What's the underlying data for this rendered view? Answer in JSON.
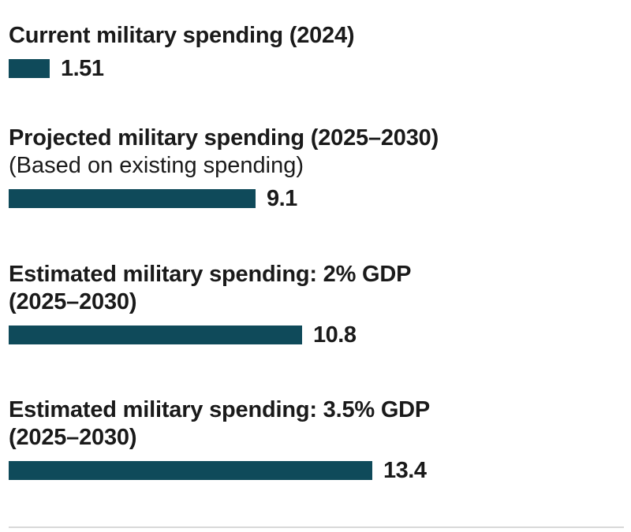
{
  "chart_data": {
    "type": "bar",
    "orientation": "horizontal",
    "title": "",
    "xlabel": "",
    "ylabel": "",
    "xlim": [
      0,
      13.4
    ],
    "bar_color": "#0f4a5a",
    "categories": [
      "Current military spending (2024)",
      "Projected military spending (2025–2030)",
      "Estimated military spending: 2% GDP (2025–2030)",
      "Estimated military spending: 3.5% GDP (2025–2030)"
    ],
    "items": [
      {
        "label_lines": [
          "Current military spending (2024)"
        ],
        "sublabel": "",
        "value": 1.51,
        "value_label": "1.51"
      },
      {
        "label_lines": [
          "Projected military spending (2025–2030)"
        ],
        "sublabel": "(Based on existing spending)",
        "value": 9.1,
        "value_label": "9.1"
      },
      {
        "label_lines": [
          "Estimated military spending: 2% GDP",
          "(2025–2030)"
        ],
        "sublabel": "",
        "value": 10.8,
        "value_label": "10.8"
      },
      {
        "label_lines": [
          "Estimated military spending: 3.5% GDP",
          "(2025–2030)"
        ],
        "sublabel": "",
        "value": 13.4,
        "value_label": "13.4"
      }
    ],
    "values": [
      1.51,
      9.1,
      10.8,
      13.4
    ]
  }
}
